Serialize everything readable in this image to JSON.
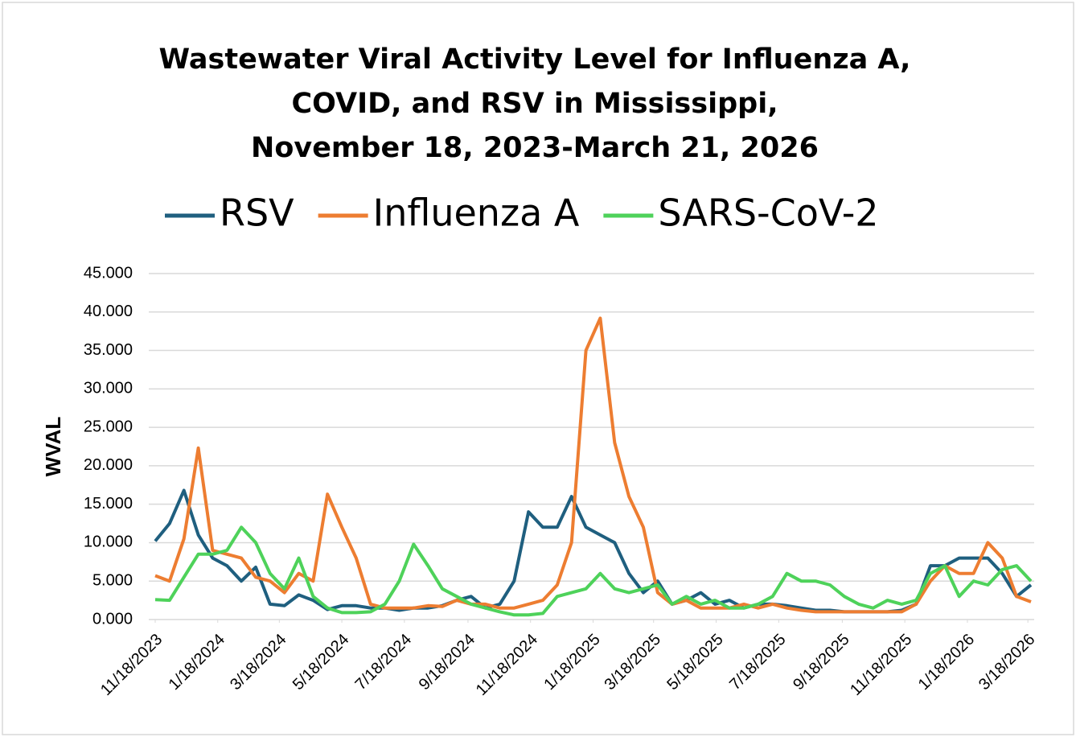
{
  "chart_data": {
    "type": "line",
    "title": "Wastewater Viral Activity Level for Influenza A, COVID, and RSV  in Mississippi, November 18, 2023-March 21, 2026",
    "title_lines": [
      "Wastewater Viral Activity Level for Influenza A,",
      "COVID, and RSV  in Mississippi,",
      "November 18, 2023-March 21, 2026"
    ],
    "y_label": "WVAL",
    "x": [
      "2023-11-18",
      "2023-12-02",
      "2023-12-16",
      "2023-12-30",
      "2024-01-13",
      "2024-01-27",
      "2024-02-10",
      "2024-02-24",
      "2024-03-09",
      "2024-03-23",
      "2024-04-06",
      "2024-04-20",
      "2024-05-04",
      "2024-05-18",
      "2024-06-01",
      "2024-06-15",
      "2024-06-29",
      "2024-07-13",
      "2024-07-27",
      "2024-08-10",
      "2024-08-24",
      "2024-09-07",
      "2024-09-21",
      "2024-10-05",
      "2024-10-19",
      "2024-11-02",
      "2024-11-16",
      "2024-11-30",
      "2024-12-14",
      "2024-12-28",
      "2025-01-11",
      "2025-01-25",
      "2025-02-08",
      "2025-02-22",
      "2025-03-08",
      "2025-03-22",
      "2025-04-05",
      "2025-04-19",
      "2025-05-03",
      "2025-05-17",
      "2025-05-31",
      "2025-06-14",
      "2025-06-28",
      "2025-07-12",
      "2025-07-26",
      "2025-08-09",
      "2025-08-23",
      "2025-09-06",
      "2025-09-20",
      "2025-10-04",
      "2025-10-18",
      "2025-11-01",
      "2025-11-15",
      "2025-11-29",
      "2025-12-13",
      "2025-12-27",
      "2026-01-10",
      "2026-01-24",
      "2026-02-07",
      "2026-02-21",
      "2026-03-07",
      "2026-03-21"
    ],
    "series": [
      {
        "name": "RSV",
        "color": "#1f5f7f",
        "values": [
          10.2,
          12.5,
          16.8,
          11,
          8,
          7,
          5,
          6.8,
          2,
          1.8,
          3.2,
          2.5,
          1.3,
          1.8,
          1.8,
          1.5,
          1.5,
          1.2,
          1.5,
          1.5,
          1.8,
          2.5,
          3,
          1.5,
          2,
          5,
          14,
          12,
          12,
          16,
          12,
          11,
          10,
          6,
          3.5,
          5,
          2,
          2.5,
          3.5,
          2,
          2.5,
          1.5,
          2,
          2,
          1.8,
          1.5,
          1.2,
          1.2,
          1,
          1,
          1,
          1,
          1.2,
          2,
          7,
          7,
          8,
          8,
          8,
          6,
          3,
          4.5
        ]
      },
      {
        "name": "Influenza A",
        "color": "#ed7d31",
        "values": [
          5.7,
          5,
          10.5,
          22.3,
          9,
          8.5,
          8,
          5.5,
          5,
          3.5,
          6,
          5,
          16.3,
          12,
          8,
          2,
          1.5,
          1.5,
          1.5,
          1.8,
          1.7,
          2.5,
          2,
          2,
          1.5,
          1.5,
          2,
          2.5,
          4.5,
          10,
          35,
          39.2,
          23,
          16,
          12,
          3.5,
          2,
          2.5,
          1.5,
          1.5,
          1.5,
          2,
          1.5,
          2,
          1.5,
          1.2,
          1,
          1,
          1,
          1,
          1,
          1,
          1,
          2,
          5,
          7,
          6,
          6,
          10,
          8,
          3,
          2.3
        ]
      },
      {
        "name": "SARS-CoV-2",
        "color": "#4ed25a",
        "values": [
          2.6,
          2.5,
          5.5,
          8.5,
          8.5,
          9,
          12,
          10,
          6,
          4,
          8,
          3,
          1.5,
          0.9,
          0.9,
          1,
          2,
          5,
          9.8,
          7,
          4,
          3,
          2,
          1.5,
          1,
          0.6,
          0.6,
          0.8,
          3,
          3.5,
          4,
          6,
          4,
          3.5,
          4,
          4.5,
          2,
          3,
          2,
          2.5,
          1.5,
          1.5,
          2,
          3,
          6,
          5,
          5,
          4.5,
          3,
          2,
          1.5,
          2.5,
          2,
          2.5,
          6,
          7,
          3,
          5,
          4.5,
          6.5,
          7,
          5
        ]
      }
    ],
    "xlim": [
      "2023-11-18",
      "2026-03-21"
    ],
    "xticks": [
      {
        "value": "2023-11-18",
        "label": "11/18/2023"
      },
      {
        "value": "2024-01-18",
        "label": "1/18/2024"
      },
      {
        "value": "2024-03-18",
        "label": "3/18/2024"
      },
      {
        "value": "2024-05-18",
        "label": "5/18/2024"
      },
      {
        "value": "2024-07-18",
        "label": "7/18/2024"
      },
      {
        "value": "2024-09-18",
        "label": "9/18/2024"
      },
      {
        "value": "2024-11-18",
        "label": "11/18/2024"
      },
      {
        "value": "2025-01-18",
        "label": "1/18/2025"
      },
      {
        "value": "2025-03-18",
        "label": "3/18/2025"
      },
      {
        "value": "2025-05-18",
        "label": "5/18/2025"
      },
      {
        "value": "2025-07-18",
        "label": "7/18/2025"
      },
      {
        "value": "2025-09-18",
        "label": "9/18/2025"
      },
      {
        "value": "2025-11-18",
        "label": "11/18/2025"
      },
      {
        "value": "2026-01-18",
        "label": "1/18/2026"
      },
      {
        "value": "2026-03-18",
        "label": "3/18/2026"
      }
    ],
    "ylim": [
      0,
      45
    ],
    "yticks": [
      {
        "value": 0,
        "label": "0.000"
      },
      {
        "value": 5,
        "label": "5.000"
      },
      {
        "value": 10,
        "label": "10.000"
      },
      {
        "value": 15,
        "label": "15.000"
      },
      {
        "value": 20,
        "label": "20.000"
      },
      {
        "value": 25,
        "label": "25.000"
      },
      {
        "value": 30,
        "label": "30.000"
      },
      {
        "value": 35,
        "label": "35.000"
      },
      {
        "value": 40,
        "label": "40.000"
      },
      {
        "value": 45,
        "label": "45.000"
      }
    ],
    "grid": true,
    "legend": "top"
  }
}
